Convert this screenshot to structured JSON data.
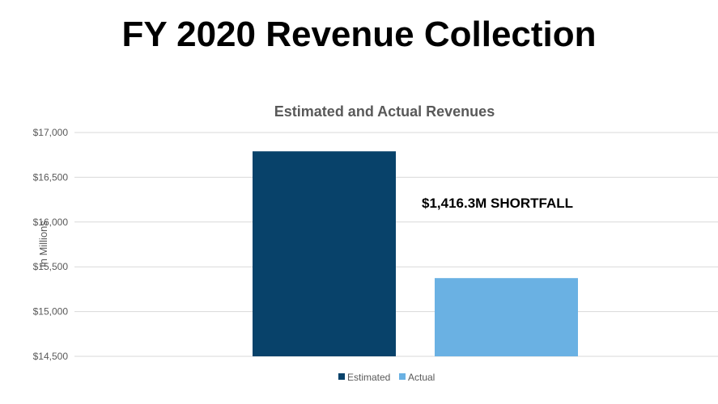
{
  "page_title": "FY 2020 Revenue Collection",
  "chart_data": {
    "type": "bar",
    "title": "Estimated and Actual Revenues",
    "ylabel": "In Millions",
    "xlabel": "",
    "ylim": [
      14500,
      17000
    ],
    "yticks": [
      "$14,500",
      "$15,000",
      "$15,500",
      "$16,000",
      "$16,500",
      "$17,000"
    ],
    "ytick_values": [
      14500,
      15000,
      15500,
      16000,
      16500,
      17000
    ],
    "grid": true,
    "legend_position": "bottom",
    "series": [
      {
        "name": "Estimated",
        "values": [
          16790.0
        ],
        "color": "#08426A"
      },
      {
        "name": "Actual",
        "values": [
          15373.7
        ],
        "color": "#6AB1E3"
      }
    ],
    "annotation": "$1,416.3M SHORTFALL"
  }
}
